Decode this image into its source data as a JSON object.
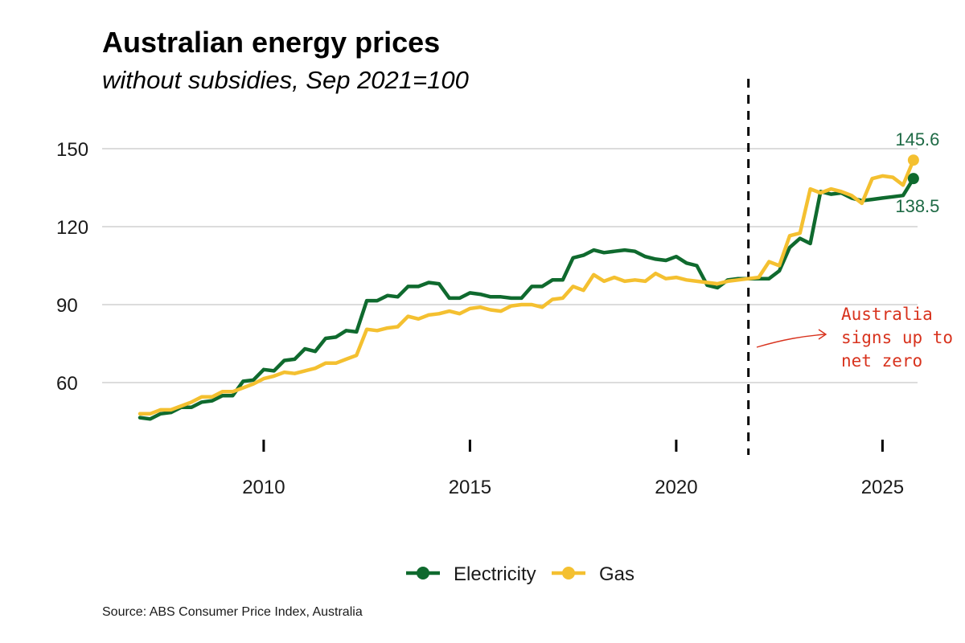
{
  "chart_data": {
    "type": "line",
    "title": "Australian energy prices",
    "subtitle": "without subsidies, Sep 2021=100",
    "source": "Source: ABS Consumer Price Index, Australia",
    "xlabel": "",
    "ylabel": "",
    "xlim": [
      2006.5,
      2026.5
    ],
    "ylim": [
      30,
      160
    ],
    "yticks": [
      60,
      90,
      120,
      150
    ],
    "xticks": [
      2010,
      2015,
      2020,
      2025
    ],
    "grid": true,
    "legend_position": "bottom-center",
    "event": {
      "x": 2021.75,
      "annotation": [
        "Australia",
        "signs up to",
        "net zero"
      ],
      "color": "#d8331e"
    },
    "series": [
      {
        "name": "Electricity",
        "color": "#0f6a2e",
        "end_label": "138.5",
        "points": [
          [
            2007.0,
            46.5
          ],
          [
            2007.25,
            46.0
          ],
          [
            2007.5,
            48.0
          ],
          [
            2007.75,
            48.5
          ],
          [
            2008.0,
            50.5
          ],
          [
            2008.25,
            50.5
          ],
          [
            2008.5,
            52.5
          ],
          [
            2008.75,
            53.0
          ],
          [
            2009.0,
            55.0
          ],
          [
            2009.25,
            55.0
          ],
          [
            2009.5,
            60.5
          ],
          [
            2009.75,
            61.0
          ],
          [
            2010.0,
            65.0
          ],
          [
            2010.25,
            64.5
          ],
          [
            2010.5,
            68.5
          ],
          [
            2010.75,
            69.0
          ],
          [
            2011.0,
            73.0
          ],
          [
            2011.25,
            72.0
          ],
          [
            2011.5,
            77.0
          ],
          [
            2011.75,
            77.5
          ],
          [
            2012.0,
            80.0
          ],
          [
            2012.25,
            79.5
          ],
          [
            2012.5,
            91.5
          ],
          [
            2012.75,
            91.5
          ],
          [
            2013.0,
            93.5
          ],
          [
            2013.25,
            93.0
          ],
          [
            2013.5,
            97.0
          ],
          [
            2013.75,
            97.0
          ],
          [
            2014.0,
            98.5
          ],
          [
            2014.25,
            98.0
          ],
          [
            2014.5,
            92.5
          ],
          [
            2014.75,
            92.5
          ],
          [
            2015.0,
            94.5
          ],
          [
            2015.25,
            94.0
          ],
          [
            2015.5,
            93.0
          ],
          [
            2015.75,
            93.0
          ],
          [
            2016.0,
            92.5
          ],
          [
            2016.25,
            92.5
          ],
          [
            2016.5,
            97.0
          ],
          [
            2016.75,
            97.0
          ],
          [
            2017.0,
            99.5
          ],
          [
            2017.25,
            99.5
          ],
          [
            2017.5,
            108.0
          ],
          [
            2017.75,
            109.0
          ],
          [
            2018.0,
            111.0
          ],
          [
            2018.25,
            110.0
          ],
          [
            2018.5,
            110.5
          ],
          [
            2018.75,
            111.0
          ],
          [
            2019.0,
            110.5
          ],
          [
            2019.25,
            108.5
          ],
          [
            2019.5,
            107.5
          ],
          [
            2019.75,
            107.0
          ],
          [
            2020.0,
            108.5
          ],
          [
            2020.25,
            106.0
          ],
          [
            2020.5,
            105.0
          ],
          [
            2020.75,
            97.5
          ],
          [
            2021.0,
            96.5
          ],
          [
            2021.25,
            99.5
          ],
          [
            2021.5,
            100.0
          ],
          [
            2021.75,
            100.0
          ],
          [
            2022.0,
            100.0
          ],
          [
            2022.25,
            100.0
          ],
          [
            2022.5,
            103.0
          ],
          [
            2022.75,
            112.0
          ],
          [
            2023.0,
            115.5
          ],
          [
            2023.25,
            113.5
          ],
          [
            2023.5,
            133.5
          ],
          [
            2023.75,
            132.5
          ],
          [
            2024.0,
            133.0
          ],
          [
            2024.25,
            131.0
          ],
          [
            2024.5,
            130.0
          ],
          [
            2024.75,
            130.5
          ],
          [
            2025.0,
            131.0
          ],
          [
            2025.25,
            131.5
          ],
          [
            2025.5,
            132.0
          ],
          [
            2025.75,
            138.5
          ]
        ]
      },
      {
        "name": "Gas",
        "color": "#f4c030",
        "end_label": "145.6",
        "points": [
          [
            2007.0,
            48.0
          ],
          [
            2007.25,
            48.0
          ],
          [
            2007.5,
            49.5
          ],
          [
            2007.75,
            49.5
          ],
          [
            2008.0,
            51.0
          ],
          [
            2008.25,
            52.5
          ],
          [
            2008.5,
            54.5
          ],
          [
            2008.75,
            54.5
          ],
          [
            2009.0,
            56.5
          ],
          [
            2009.25,
            56.5
          ],
          [
            2009.5,
            58.0
          ],
          [
            2009.75,
            59.5
          ],
          [
            2010.0,
            61.5
          ],
          [
            2010.25,
            62.5
          ],
          [
            2010.5,
            64.0
          ],
          [
            2010.75,
            63.5
          ],
          [
            2011.0,
            64.5
          ],
          [
            2011.25,
            65.5
          ],
          [
            2011.5,
            67.5
          ],
          [
            2011.75,
            67.5
          ],
          [
            2012.0,
            69.0
          ],
          [
            2012.25,
            70.5
          ],
          [
            2012.5,
            80.5
          ],
          [
            2012.75,
            80.0
          ],
          [
            2013.0,
            81.0
          ],
          [
            2013.25,
            81.5
          ],
          [
            2013.5,
            85.5
          ],
          [
            2013.75,
            84.5
          ],
          [
            2014.0,
            86.0
          ],
          [
            2014.25,
            86.5
          ],
          [
            2014.5,
            87.5
          ],
          [
            2014.75,
            86.5
          ],
          [
            2015.0,
            88.5
          ],
          [
            2015.25,
            89.0
          ],
          [
            2015.5,
            88.0
          ],
          [
            2015.75,
            87.5
          ],
          [
            2016.0,
            89.5
          ],
          [
            2016.25,
            90.0
          ],
          [
            2016.5,
            90.0
          ],
          [
            2016.75,
            89.0
          ],
          [
            2017.0,
            92.0
          ],
          [
            2017.25,
            92.5
          ],
          [
            2017.5,
            97.0
          ],
          [
            2017.75,
            95.5
          ],
          [
            2018.0,
            101.5
          ],
          [
            2018.25,
            99.0
          ],
          [
            2018.5,
            100.5
          ],
          [
            2018.75,
            99.0
          ],
          [
            2019.0,
            99.5
          ],
          [
            2019.25,
            99.0
          ],
          [
            2019.5,
            102.0
          ],
          [
            2019.75,
            100.0
          ],
          [
            2020.0,
            100.5
          ],
          [
            2020.25,
            99.5
          ],
          [
            2020.5,
            99.0
          ],
          [
            2020.75,
            98.5
          ],
          [
            2021.0,
            98.0
          ],
          [
            2021.25,
            99.0
          ],
          [
            2021.5,
            99.5
          ],
          [
            2021.75,
            100.0
          ],
          [
            2022.0,
            100.5
          ],
          [
            2022.25,
            106.5
          ],
          [
            2022.5,
            105.0
          ],
          [
            2022.75,
            116.5
          ],
          [
            2023.0,
            117.5
          ],
          [
            2023.25,
            134.5
          ],
          [
            2023.5,
            133.0
          ],
          [
            2023.75,
            134.5
          ],
          [
            2024.0,
            133.5
          ],
          [
            2024.25,
            132.0
          ],
          [
            2024.5,
            129.0
          ],
          [
            2024.75,
            138.5
          ],
          [
            2025.0,
            139.5
          ],
          [
            2025.25,
            139.0
          ],
          [
            2025.5,
            136.0
          ],
          [
            2025.75,
            145.6
          ]
        ]
      }
    ]
  }
}
